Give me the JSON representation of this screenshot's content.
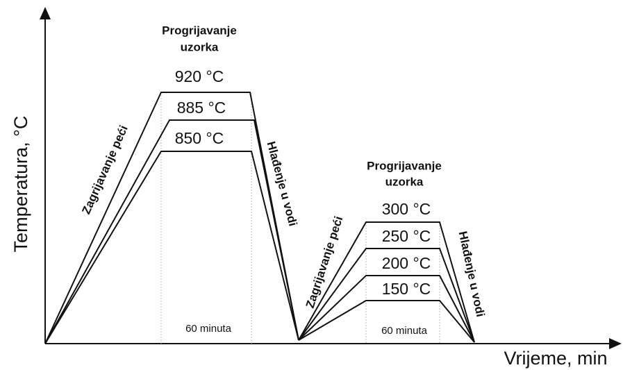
{
  "axes": {
    "y_label": "Temperatura, °C",
    "x_label": "Vrijeme, min"
  },
  "stage1": {
    "title_line1": "Progrijavanje",
    "title_line2": "uzorka",
    "heating": "Zagrijavanje peći",
    "cooling": "Hlađenje u vodi",
    "duration": "60 minuta",
    "temperatures": [
      "920 °C",
      "885 °C",
      "850 °C"
    ]
  },
  "stage2": {
    "title_line1": "Progrijavanje",
    "title_line2": "uzorka",
    "heating": "Zagrijavanje peći",
    "cooling": "Hlađenje u vodi",
    "duration": "60 minuta",
    "temperatures": [
      "300 °C",
      "250 °C",
      "200 °C",
      "150 °C"
    ]
  }
}
